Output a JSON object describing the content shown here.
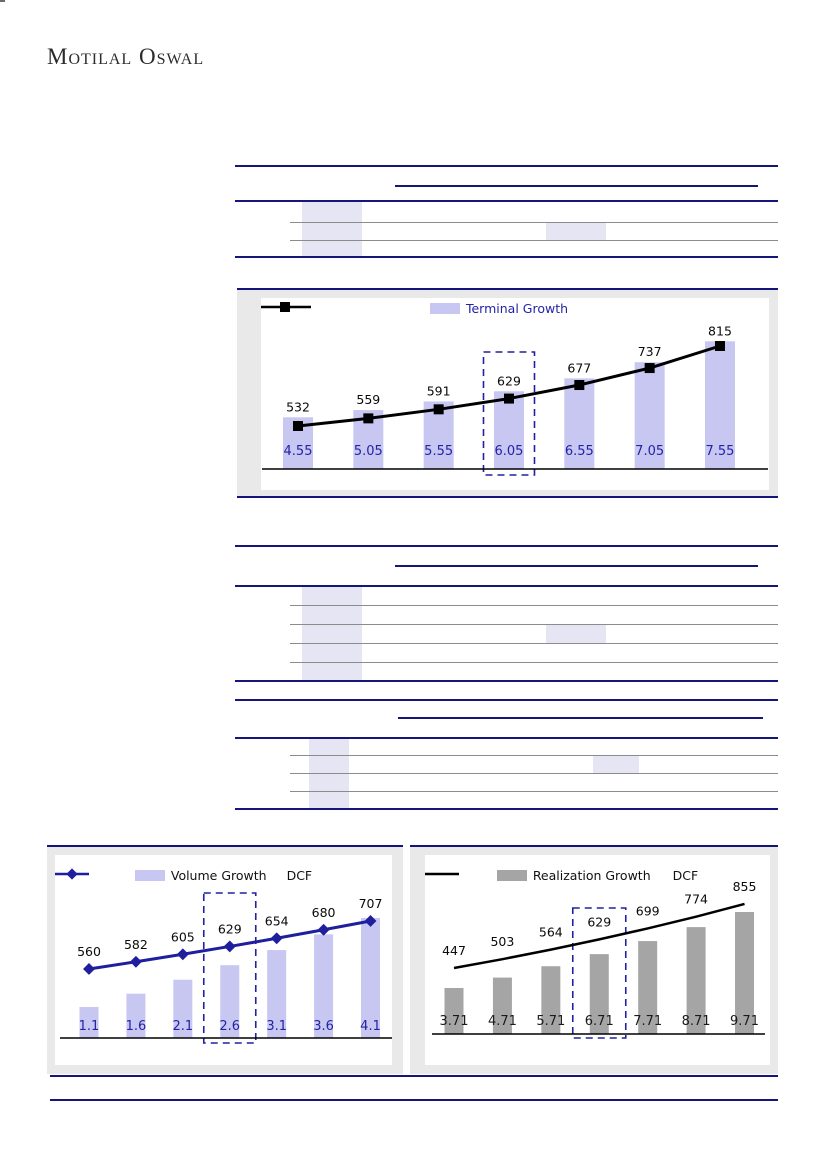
{
  "logo": {
    "text": "Motilal Oswal"
  },
  "colors": {
    "navy_rule": "#16167A",
    "gray_rule": "#8C8C8C",
    "highlight_cell": "#E5E5F3",
    "lavender_bar": "#C7C7F1",
    "gray_bar": "#A5A5A5",
    "navy_line": "#1F1F9E",
    "black_line": "#000000",
    "navy_text": "#2323A8",
    "dash_box": "#2020A0"
  },
  "chart_data": [
    {
      "type": "bar",
      "legend": [
        {
          "label": "Terminal Growth",
          "swatch": "#C7C7F1"
        },
        {
          "label": "",
          "swatch": "black-line-square"
        }
      ],
      "categories": [
        "4.55",
        "5.05",
        "5.55",
        "6.05",
        "6.55",
        "7.05",
        "7.55"
      ],
      "series": [
        {
          "name": "Terminal Growth",
          "type": "bar",
          "values": [
            532,
            559,
            591,
            629,
            677,
            737,
            815
          ]
        },
        {
          "name": "",
          "type": "line",
          "values": [
            532,
            559,
            591,
            629,
            677,
            737,
            815
          ]
        }
      ],
      "data_labels": [
        "532",
        "559",
        "591",
        "629",
        "677",
        "737",
        "815"
      ],
      "highlighted_category": "6.05",
      "grid": "off",
      "legend_position": "top-center"
    },
    {
      "type": "bar",
      "legend": [
        {
          "label": "Volume Growth",
          "swatch": "#C7C7F1"
        },
        {
          "label": "DCF",
          "swatch": "navy-line-diamond"
        }
      ],
      "categories": [
        "1.1",
        "1.6",
        "2.1",
        "2.6",
        "3.1",
        "3.6",
        "4.1"
      ],
      "series": [
        {
          "name": "Volume Growth",
          "type": "bar",
          "values": [
            560,
            582,
            605,
            629,
            654,
            680,
            707
          ]
        },
        {
          "name": "DCF",
          "type": "line",
          "values": [
            560,
            582,
            605,
            629,
            654,
            680,
            707
          ]
        }
      ],
      "data_labels": [
        "560",
        "582",
        "605",
        "629",
        "654",
        "680",
        "707"
      ],
      "highlighted_category": "2.6",
      "grid": "off",
      "legend_position": "top-center"
    },
    {
      "type": "bar",
      "legend": [
        {
          "label": "Realization Growth",
          "swatch": "#A5A5A5"
        },
        {
          "label": "DCF",
          "swatch": "black-line"
        }
      ],
      "categories": [
        "3.71",
        "4.71",
        "5.71",
        "6.71",
        "7.71",
        "8.71",
        "9.71"
      ],
      "series": [
        {
          "name": "Realization Growth",
          "type": "bar",
          "values": [
            447,
            503,
            564,
            629,
            699,
            774,
            855
          ]
        },
        {
          "name": "DCF",
          "type": "line",
          "values": [
            447,
            503,
            564,
            629,
            699,
            774,
            855
          ]
        }
      ],
      "data_labels": [
        "447",
        "503",
        "564",
        "629",
        "699",
        "774",
        "855"
      ],
      "highlighted_category": "6.71",
      "grid": "off",
      "legend_position": "top-center"
    }
  ]
}
